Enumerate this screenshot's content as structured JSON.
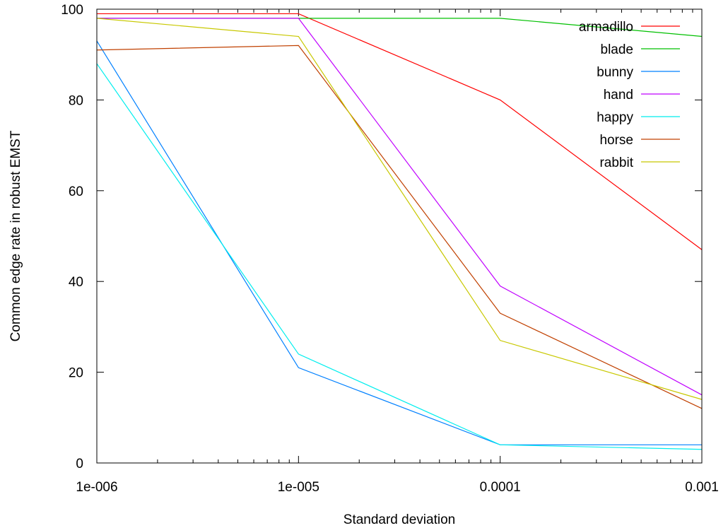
{
  "chart_data": {
    "type": "line",
    "title": "",
    "xlabel": "Standard deviation",
    "ylabel": "Common edge rate in robust EMST",
    "x_scale": "log",
    "x": [
      1e-06,
      1e-05,
      0.0001,
      0.001
    ],
    "xticks": [
      "1e-006",
      "1e-005",
      "0.0001",
      "0.001"
    ],
    "xlim": [
      1e-06,
      0.001
    ],
    "ylim": [
      0,
      100
    ],
    "yticks": [
      "0",
      "20",
      "40",
      "60",
      "80",
      "100"
    ],
    "grid": false,
    "legend_position": "top-right",
    "series": [
      {
        "name": "armadillo",
        "color": "#ff0000",
        "values": [
          99,
          99,
          80,
          47
        ]
      },
      {
        "name": "blade",
        "color": "#00c000",
        "values": [
          98,
          98,
          98,
          94
        ]
      },
      {
        "name": "bunny",
        "color": "#0080ff",
        "values": [
          93,
          21,
          4,
          4
        ]
      },
      {
        "name": "hand",
        "color": "#c000ff",
        "values": [
          98,
          98,
          39,
          15
        ]
      },
      {
        "name": "happy",
        "color": "#00eeee",
        "values": [
          88,
          24,
          4,
          3
        ]
      },
      {
        "name": "horse",
        "color": "#c04000",
        "values": [
          91,
          92,
          33,
          12
        ]
      },
      {
        "name": "rabbit",
        "color": "#c8c800",
        "values": [
          98,
          94,
          27,
          14
        ]
      }
    ]
  }
}
